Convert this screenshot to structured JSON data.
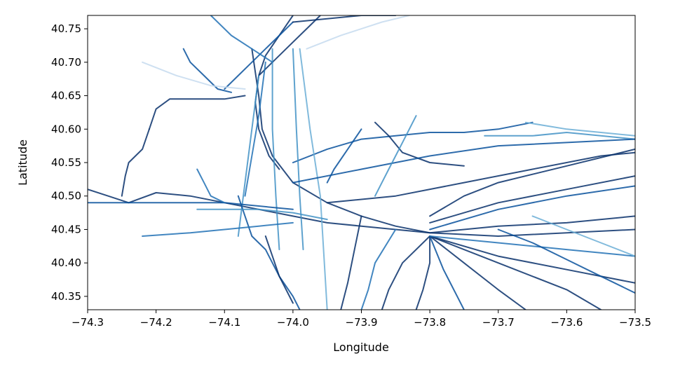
{
  "chart_data": {
    "type": "line",
    "title": "",
    "xlabel": "Longitude",
    "ylabel": "Latitude",
    "xlim": [
      -74.3,
      -73.5
    ],
    "ylim": [
      40.33,
      40.77
    ],
    "xticks": [
      -74.3,
      -74.2,
      -74.1,
      -74.0,
      -73.9,
      -73.8,
      -73.7,
      -73.6,
      -73.5
    ],
    "xtick_labels": [
      "−74.3",
      "−74.2",
      "−74.1",
      "−74.0",
      "−73.9",
      "−73.8",
      "−73.7",
      "−73.6",
      "−73.5"
    ],
    "yticks": [
      40.35,
      40.4,
      40.45,
      40.5,
      40.55,
      40.6,
      40.65,
      40.7,
      40.75
    ],
    "ytick_labels": [
      "40.35",
      "40.40",
      "40.45",
      "40.50",
      "40.55",
      "40.60",
      "40.65",
      "40.70",
      "40.75"
    ],
    "grid": false,
    "legend": "none",
    "colormap": "Blues",
    "colors": {
      "darkest": "#08306b",
      "dark": "#08519c",
      "mid": "#2171b5",
      "light": "#4292c6",
      "lighter": "#6baed6",
      "palest": "#c6dbef"
    },
    "series": [
      {
        "color": "#08306b",
        "points": [
          [
            -74.3,
            40.51
          ],
          [
            -74.27,
            40.5
          ],
          [
            -74.24,
            40.49
          ],
          [
            -74.2,
            40.505
          ],
          [
            -74.15,
            40.5
          ],
          [
            -74.1,
            40.49
          ],
          [
            -74.05,
            40.48
          ],
          [
            -74.0,
            40.47
          ],
          [
            -73.95,
            40.46
          ],
          [
            -73.9,
            40.455
          ],
          [
            -73.85,
            40.45
          ],
          [
            -73.8,
            40.445
          ],
          [
            -73.75,
            40.45
          ],
          [
            -73.7,
            40.455
          ],
          [
            -73.6,
            40.46
          ],
          [
            -73.5,
            40.47
          ]
        ]
      },
      {
        "color": "#08306b",
        "points": [
          [
            -74.06,
            40.72
          ],
          [
            -74.05,
            40.65
          ],
          [
            -74.045,
            40.6
          ],
          [
            -74.03,
            40.56
          ],
          [
            -74.0,
            40.52
          ],
          [
            -73.95,
            40.49
          ],
          [
            -73.9,
            40.47
          ],
          [
            -73.85,
            40.455
          ],
          [
            -73.8,
            40.445
          ],
          [
            -73.7,
            40.44
          ],
          [
            -73.6,
            40.445
          ],
          [
            -73.5,
            40.45
          ]
        ]
      },
      {
        "color": "#08306b",
        "points": [
          [
            -74.0,
            40.77
          ],
          [
            -74.02,
            40.74
          ],
          [
            -74.04,
            40.71
          ],
          [
            -74.05,
            40.68
          ],
          [
            -74.055,
            40.64
          ],
          [
            -74.05,
            40.6
          ],
          [
            -74.035,
            40.56
          ],
          [
            -74.02,
            40.54
          ]
        ]
      },
      {
        "color": "#08306b",
        "points": [
          [
            -73.96,
            40.77
          ],
          [
            -73.98,
            40.75
          ],
          [
            -74.01,
            40.72
          ],
          [
            -74.03,
            40.7
          ],
          [
            -74.05,
            40.68
          ]
        ]
      },
      {
        "color": "#08306b",
        "points": [
          [
            -74.21,
            40.6
          ],
          [
            -74.2,
            40.63
          ],
          [
            -74.18,
            40.645
          ],
          [
            -74.15,
            40.645
          ],
          [
            -74.1,
            40.645
          ],
          [
            -74.07,
            40.65
          ]
        ]
      },
      {
        "color": "#08306b",
        "points": [
          [
            -74.25,
            40.5
          ],
          [
            -74.245,
            40.53
          ],
          [
            -74.24,
            40.55
          ],
          [
            -74.22,
            40.57
          ],
          [
            -74.21,
            40.6
          ]
        ]
      },
      {
        "color": "#08519c",
        "points": [
          [
            -74.1,
            40.66
          ],
          [
            -74.08,
            40.68
          ],
          [
            -74.06,
            40.7
          ],
          [
            -74.04,
            40.72
          ],
          [
            -74.02,
            40.74
          ],
          [
            -74.0,
            40.76
          ]
        ]
      },
      {
        "color": "#08519c",
        "points": [
          [
            -74.16,
            40.72
          ],
          [
            -74.15,
            40.7
          ],
          [
            -74.13,
            40.68
          ],
          [
            -74.11,
            40.66
          ],
          [
            -74.09,
            40.655
          ]
        ]
      },
      {
        "color": "#08519c",
        "points": [
          [
            -74.0,
            40.55
          ],
          [
            -73.95,
            40.57
          ],
          [
            -73.9,
            40.585
          ],
          [
            -73.85,
            40.59
          ],
          [
            -73.8,
            40.595
          ],
          [
            -73.75,
            40.595
          ],
          [
            -73.7,
            40.6
          ],
          [
            -73.65,
            40.61
          ]
        ]
      },
      {
        "color": "#08306b",
        "points": [
          [
            -73.8,
            40.47
          ],
          [
            -73.75,
            40.5
          ],
          [
            -73.7,
            40.52
          ],
          [
            -73.6,
            40.545
          ],
          [
            -73.5,
            40.57
          ]
        ]
      },
      {
        "color": "#08306b",
        "points": [
          [
            -73.8,
            40.46
          ],
          [
            -73.7,
            40.49
          ],
          [
            -73.6,
            40.51
          ],
          [
            -73.5,
            40.53
          ]
        ]
      },
      {
        "color": "#08519c",
        "points": [
          [
            -73.8,
            40.45
          ],
          [
            -73.7,
            40.48
          ],
          [
            -73.6,
            40.5
          ],
          [
            -73.5,
            40.515
          ]
        ]
      },
      {
        "color": "#08306b",
        "points": [
          [
            -73.8,
            40.44
          ],
          [
            -73.7,
            40.41
          ],
          [
            -73.6,
            40.39
          ],
          [
            -73.5,
            40.37
          ]
        ]
      },
      {
        "color": "#08306b",
        "points": [
          [
            -73.8,
            40.44
          ],
          [
            -73.75,
            40.4
          ],
          [
            -73.7,
            40.36
          ],
          [
            -73.66,
            40.33
          ]
        ]
      },
      {
        "color": "#08306b",
        "points": [
          [
            -73.8,
            40.44
          ],
          [
            -73.8,
            40.4
          ],
          [
            -73.81,
            40.36
          ],
          [
            -73.82,
            40.33
          ]
        ]
      },
      {
        "color": "#08519c",
        "points": [
          [
            -73.8,
            40.44
          ],
          [
            -73.78,
            40.39
          ],
          [
            -73.76,
            40.35
          ],
          [
            -73.75,
            40.33
          ]
        ]
      },
      {
        "color": "#08306b",
        "points": [
          [
            -73.8,
            40.44
          ],
          [
            -73.84,
            40.4
          ],
          [
            -73.86,
            40.36
          ],
          [
            -73.87,
            40.33
          ]
        ]
      },
      {
        "color": "#08306b",
        "points": [
          [
            -73.8,
            40.44
          ],
          [
            -73.7,
            40.4
          ],
          [
            -73.6,
            40.36
          ],
          [
            -73.55,
            40.33
          ]
        ]
      },
      {
        "color": "#2171b5",
        "points": [
          [
            -73.8,
            40.44
          ],
          [
            -73.7,
            40.43
          ],
          [
            -73.6,
            40.42
          ],
          [
            -73.5,
            40.41
          ]
        ]
      },
      {
        "color": "#08306b",
        "points": [
          [
            -73.9,
            40.47
          ],
          [
            -73.91,
            40.42
          ],
          [
            -73.92,
            40.37
          ],
          [
            -73.93,
            40.33
          ]
        ]
      },
      {
        "color": "#2171b5",
        "points": [
          [
            -73.85,
            40.45
          ],
          [
            -73.88,
            40.4
          ],
          [
            -73.89,
            40.36
          ],
          [
            -73.9,
            40.33
          ]
        ]
      },
      {
        "color": "#4292c6",
        "points": [
          [
            -74.05,
            40.68
          ],
          [
            -74.06,
            40.6
          ],
          [
            -74.07,
            40.52
          ],
          [
            -74.08,
            40.44
          ]
        ]
      },
      {
        "color": "#4292c6",
        "points": [
          [
            -74.03,
            40.72
          ],
          [
            -74.03,
            40.6
          ],
          [
            -74.025,
            40.5
          ],
          [
            -74.02,
            40.42
          ]
        ]
      },
      {
        "color": "#4292c6",
        "points": [
          [
            -74.0,
            40.72
          ],
          [
            -73.995,
            40.6
          ],
          [
            -73.99,
            40.5
          ],
          [
            -73.985,
            40.42
          ]
        ]
      },
      {
        "color": "#6baed6",
        "points": [
          [
            -73.99,
            40.72
          ],
          [
            -73.975,
            40.6
          ],
          [
            -73.96,
            40.5
          ],
          [
            -73.95,
            40.33
          ]
        ]
      },
      {
        "color": "#2171b5",
        "points": [
          [
            -74.04,
            40.7
          ],
          [
            -74.05,
            40.62
          ],
          [
            -74.06,
            40.56
          ],
          [
            -74.07,
            40.5
          ]
        ]
      },
      {
        "color": "#08519c",
        "points": [
          [
            -74.08,
            40.5
          ],
          [
            -74.07,
            40.47
          ],
          [
            -74.06,
            40.44
          ],
          [
            -74.04,
            40.42
          ],
          [
            -74.03,
            40.4
          ],
          [
            -74.02,
            40.38
          ],
          [
            -74.0,
            40.35
          ],
          [
            -73.99,
            40.33
          ]
        ]
      },
      {
        "color": "#08306b",
        "points": [
          [
            -74.04,
            40.44
          ],
          [
            -74.03,
            40.41
          ],
          [
            -74.02,
            40.38
          ],
          [
            -74.0,
            40.34
          ]
        ]
      },
      {
        "color": "#2171b5",
        "points": [
          [
            -74.22,
            40.44
          ],
          [
            -74.15,
            40.445
          ],
          [
            -74.1,
            40.45
          ],
          [
            -74.05,
            40.455
          ],
          [
            -74.0,
            40.46
          ]
        ]
      },
      {
        "color": "#4292c6",
        "points": [
          [
            -74.14,
            40.48
          ],
          [
            -74.1,
            40.48
          ],
          [
            -74.05,
            40.48
          ],
          [
            -74.0,
            40.475
          ],
          [
            -73.95,
            40.465
          ]
        ]
      },
      {
        "color": "#08519c",
        "points": [
          [
            -74.3,
            40.49
          ],
          [
            -74.2,
            40.49
          ],
          [
            -74.1,
            40.49
          ],
          [
            -74.0,
            40.48
          ]
        ]
      },
      {
        "color": "#4292c6",
        "points": [
          [
            -73.72,
            40.59
          ],
          [
            -73.65,
            40.59
          ],
          [
            -73.6,
            40.595
          ],
          [
            -73.55,
            40.59
          ],
          [
            -73.5,
            40.585
          ]
        ]
      },
      {
        "color": "#6baed6",
        "points": [
          [
            -73.66,
            40.61
          ],
          [
            -73.6,
            40.6
          ],
          [
            -73.55,
            40.595
          ],
          [
            -73.5,
            40.59
          ]
        ]
      },
      {
        "color": "#c6dbef",
        "points": [
          [
            -74.22,
            40.7
          ],
          [
            -74.17,
            40.68
          ],
          [
            -74.12,
            40.665
          ],
          [
            -74.07,
            40.66
          ]
        ]
      },
      {
        "color": "#c6dbef",
        "points": [
          [
            -73.98,
            40.72
          ],
          [
            -73.93,
            40.74
          ],
          [
            -73.87,
            40.76
          ],
          [
            -73.83,
            40.77
          ]
        ]
      },
      {
        "color": "#2171b5",
        "points": [
          [
            -74.12,
            40.77
          ],
          [
            -74.09,
            40.74
          ],
          [
            -74.06,
            40.72
          ],
          [
            -74.03,
            40.7
          ]
        ]
      },
      {
        "color": "#08306b",
        "points": [
          [
            -73.88,
            40.61
          ],
          [
            -73.86,
            40.59
          ],
          [
            -73.84,
            40.565
          ],
          [
            -73.8,
            40.55
          ],
          [
            -73.75,
            40.545
          ]
        ]
      },
      {
        "color": "#08519c",
        "points": [
          [
            -74.0,
            40.52
          ],
          [
            -73.9,
            40.54
          ],
          [
            -73.8,
            40.56
          ],
          [
            -73.7,
            40.575
          ],
          [
            -73.6,
            40.58
          ],
          [
            -73.5,
            40.585
          ]
        ]
      },
      {
        "color": "#08306b",
        "points": [
          [
            -73.95,
            40.49
          ],
          [
            -73.85,
            40.5
          ],
          [
            -73.75,
            40.52
          ],
          [
            -73.65,
            40.54
          ],
          [
            -73.55,
            40.56
          ],
          [
            -73.5,
            40.565
          ]
        ]
      },
      {
        "color": "#4292c6",
        "points": [
          [
            -73.82,
            40.62
          ],
          [
            -73.84,
            40.58
          ],
          [
            -73.86,
            40.54
          ],
          [
            -73.88,
            40.5
          ]
        ]
      },
      {
        "color": "#08519c",
        "points": [
          [
            -73.9,
            40.6
          ],
          [
            -73.92,
            40.57
          ],
          [
            -73.94,
            40.54
          ],
          [
            -73.95,
            40.52
          ]
        ]
      },
      {
        "color": "#08306b",
        "points": [
          [
            -73.85,
            40.77
          ],
          [
            -73.9,
            40.77
          ],
          [
            -73.95,
            40.765
          ],
          [
            -74.0,
            40.76
          ]
        ]
      },
      {
        "color": "#2171b5",
        "points": [
          [
            -74.14,
            40.54
          ],
          [
            -74.13,
            40.52
          ],
          [
            -74.12,
            40.5
          ],
          [
            -74.1,
            40.49
          ]
        ]
      },
      {
        "color": "#08519c",
        "points": [
          [
            -73.7,
            40.45
          ],
          [
            -73.65,
            40.43
          ],
          [
            -73.6,
            40.405
          ],
          [
            -73.55,
            40.38
          ],
          [
            -73.5,
            40.355
          ]
        ]
      },
      {
        "color": "#6baed6",
        "points": [
          [
            -73.65,
            40.47
          ],
          [
            -73.6,
            40.45
          ],
          [
            -73.55,
            40.43
          ],
          [
            -73.5,
            40.41
          ]
        ]
      }
    ]
  }
}
